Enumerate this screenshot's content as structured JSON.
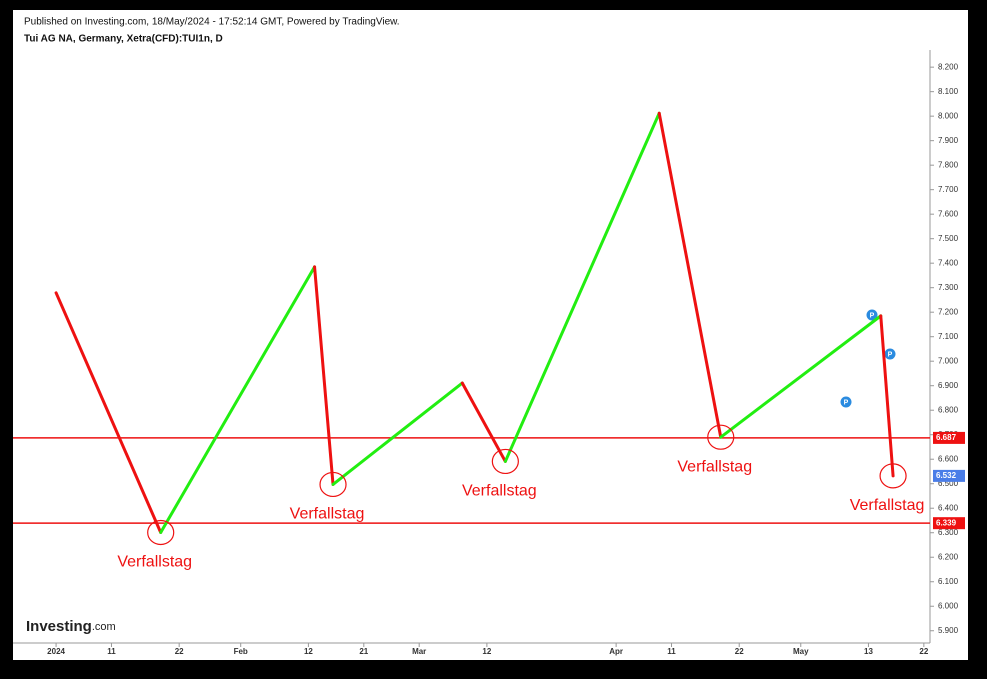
{
  "chart_data": {
    "type": "zigzag",
    "published": "Published on Investing.com, 18/May/2024 - 17:52:14 GMT, Powered by TradingView.",
    "title": "Tui AG NA, Germany, Xetra(CFD):TUI1n, D",
    "logo": {
      "brand": "Investing",
      "suffix": ".com"
    },
    "up_color": "#22ee11",
    "down_color": "#ee1111",
    "x": [
      "2024-01-02",
      "2024-01-19",
      "2024-02-13",
      "2024-02-16",
      "2024-03-08",
      "2024-03-15",
      "2024-04-09",
      "2024-04-19",
      "2024-05-15",
      "2024-05-17"
    ],
    "series": [
      {
        "name": "TUI1n",
        "values": [
          7.279,
          6.301,
          7.385,
          6.497,
          6.911,
          6.591,
          8.012,
          6.69,
          7.185,
          6.532
        ]
      }
    ],
    "last_price_color": "#4a7de8",
    "hlines": [
      {
        "value": 6.687,
        "color": "#ee1111"
      },
      {
        "value": 6.339,
        "color": "#ee1111"
      }
    ],
    "annotations": [
      {
        "text": "Verfallstag",
        "x": "2024-01-19"
      },
      {
        "text": "Verfallstag",
        "x": "2024-02-16"
      },
      {
        "text": "Verfallstag",
        "x": "2024-03-15"
      },
      {
        "text": "Verfallstag",
        "x": "2024-04-19"
      },
      {
        "text": "Verfallstag",
        "x": "2024-05-17"
      }
    ],
    "xlim": [
      "2023-12-26",
      "2024-05-23"
    ],
    "xticks": [
      {
        "value": "2024-01-02",
        "label": "2024"
      },
      {
        "value": "2024-01-11",
        "label": "11"
      },
      {
        "value": "2024-01-22",
        "label": "22"
      },
      {
        "value": "2024-02-01",
        "label": "Feb"
      },
      {
        "value": "2024-02-12",
        "label": "12"
      },
      {
        "value": "2024-02-21",
        "label": "21"
      },
      {
        "value": "2024-03-01",
        "label": "Mar"
      },
      {
        "value": "2024-03-12",
        "label": "12"
      },
      {
        "value": "2024-04-02",
        "label": "Apr"
      },
      {
        "value": "2024-04-11",
        "label": "11"
      },
      {
        "value": "2024-04-22",
        "label": "22"
      },
      {
        "value": "2024-05-02",
        "label": "May"
      },
      {
        "value": "2024-05-13",
        "label": "13"
      },
      {
        "value": "2024-05-22",
        "label": "22"
      }
    ],
    "ylim": [
      5.85,
      8.27
    ],
    "yticks": [
      {
        "value": 5.9,
        "label": "5.900"
      },
      {
        "value": 6.0,
        "label": "6.000"
      },
      {
        "value": 6.1,
        "label": "6.100"
      },
      {
        "value": 6.2,
        "label": "6.200"
      },
      {
        "value": 6.3,
        "label": "6.300"
      },
      {
        "value": 6.4,
        "label": "6.400"
      },
      {
        "value": 6.5,
        "label": "6.500"
      },
      {
        "value": 6.6,
        "label": "6.600"
      },
      {
        "value": 6.7,
        "label": "6.700"
      },
      {
        "value": 6.8,
        "label": "6.800"
      },
      {
        "value": 6.9,
        "label": "6.900"
      },
      {
        "value": 7.0,
        "label": "7.000"
      },
      {
        "value": 7.1,
        "label": "7.100"
      },
      {
        "value": 7.2,
        "label": "7.200"
      },
      {
        "value": 7.3,
        "label": "7.300"
      },
      {
        "value": 7.4,
        "label": "7.400"
      },
      {
        "value": 7.5,
        "label": "7.500"
      },
      {
        "value": 7.6,
        "label": "7.600"
      },
      {
        "value": 7.7,
        "label": "7.700"
      },
      {
        "value": 7.8,
        "label": "7.800"
      },
      {
        "value": 7.9,
        "label": "7.900"
      },
      {
        "value": 8.0,
        "label": "8.000"
      },
      {
        "value": 8.1,
        "label": "8.100"
      },
      {
        "value": 8.2,
        "label": "8.200"
      }
    ],
    "grid": false
  }
}
